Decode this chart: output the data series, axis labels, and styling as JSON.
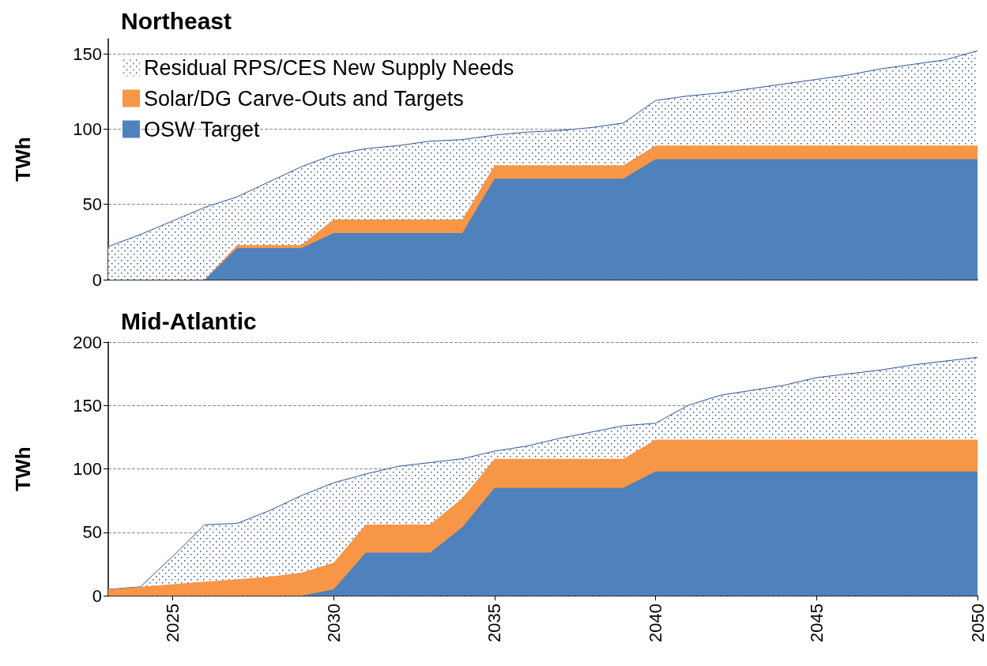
{
  "chart_data": [
    {
      "type": "area",
      "title": "Northeast",
      "ylabel": "TWh",
      "stacked": true,
      "legend": "top left",
      "grid": "y",
      "tick_labels": "y",
      "xlim": [
        2023,
        2050
      ],
      "xticks": [
        2025,
        2030,
        2035,
        2040,
        2045,
        2050
      ],
      "ylim": [
        0,
        160
      ],
      "yticks": [
        0,
        50,
        100,
        150
      ],
      "x": [
        2023,
        2024,
        2025,
        2026,
        2027,
        2028,
        2029,
        2030,
        2031,
        2032,
        2033,
        2034,
        2035,
        2036,
        2037,
        2038,
        2039,
        2040,
        2041,
        2042,
        2043,
        2044,
        2045,
        2046,
        2047,
        2048,
        2049,
        2050
      ],
      "series": [
        {
          "name": "OSW Target",
          "color": "#4f81bd",
          "values": [
            0,
            0,
            0,
            0,
            21,
            21,
            21,
            31,
            31,
            31,
            31,
            31,
            67,
            67,
            67,
            67,
            67,
            80,
            80,
            80,
            80,
            80,
            80,
            80,
            80,
            80,
            80,
            80
          ]
        },
        {
          "name": "Solar/DG Carve-Outs and Targets",
          "color": "#f79646",
          "values": [
            0,
            0,
            0,
            0,
            2,
            2,
            2,
            9,
            9,
            9,
            9,
            9,
            9,
            9,
            9,
            9,
            9,
            9,
            9,
            9,
            9,
            9,
            9,
            9,
            9,
            9,
            9,
            9
          ]
        },
        {
          "name": "Residual RPS/CES New Supply Needs",
          "color": "#2f5597",
          "values": [
            22,
            30,
            39,
            48,
            32,
            42,
            52,
            43,
            47,
            49,
            52,
            53,
            20,
            22,
            23,
            25,
            28,
            30,
            33,
            35,
            38,
            41,
            44,
            47,
            51,
            54,
            57,
            63
          ]
        }
      ]
    },
    {
      "type": "area",
      "title": "Mid-Atlantic",
      "ylabel": "TWh",
      "stacked": true,
      "grid": "y",
      "xlim": [
        2023,
        2050
      ],
      "xticks": [
        2025,
        2030,
        2035,
        2040,
        2045,
        2050
      ],
      "ylim": [
        0,
        200
      ],
      "yticks": [
        0,
        50,
        100,
        150,
        200
      ],
      "x": [
        2023,
        2024,
        2025,
        2026,
        2027,
        2028,
        2029,
        2030,
        2031,
        2032,
        2033,
        2034,
        2035,
        2036,
        2037,
        2038,
        2039,
        2040,
        2041,
        2042,
        2043,
        2044,
        2045,
        2046,
        2047,
        2048,
        2049,
        2050
      ],
      "series": [
        {
          "color": "#4f81bd",
          "values": [
            0,
            0,
            0,
            0,
            0,
            0,
            0,
            5,
            34,
            34,
            34,
            54,
            85,
            85,
            85,
            85,
            85,
            98,
            98,
            98,
            98,
            98,
            98,
            98,
            98,
            98,
            98,
            98
          ]
        },
        {
          "color": "#f79646",
          "values": [
            5,
            7,
            9,
            11,
            13,
            15,
            18,
            21,
            22,
            22,
            22,
            23,
            23,
            23,
            23,
            23,
            23,
            25,
            25,
            25,
            25,
            25,
            25,
            25,
            25,
            25,
            25,
            25
          ]
        },
        {
          "color": "#2f5597",
          "values": [
            0,
            0,
            22,
            45,
            44,
            52,
            61,
            63,
            40,
            46,
            49,
            31,
            6,
            10,
            16,
            21,
            26,
            13,
            27,
            35,
            39,
            43,
            49,
            52,
            55,
            59,
            62,
            65
          ]
        }
      ]
    }
  ]
}
